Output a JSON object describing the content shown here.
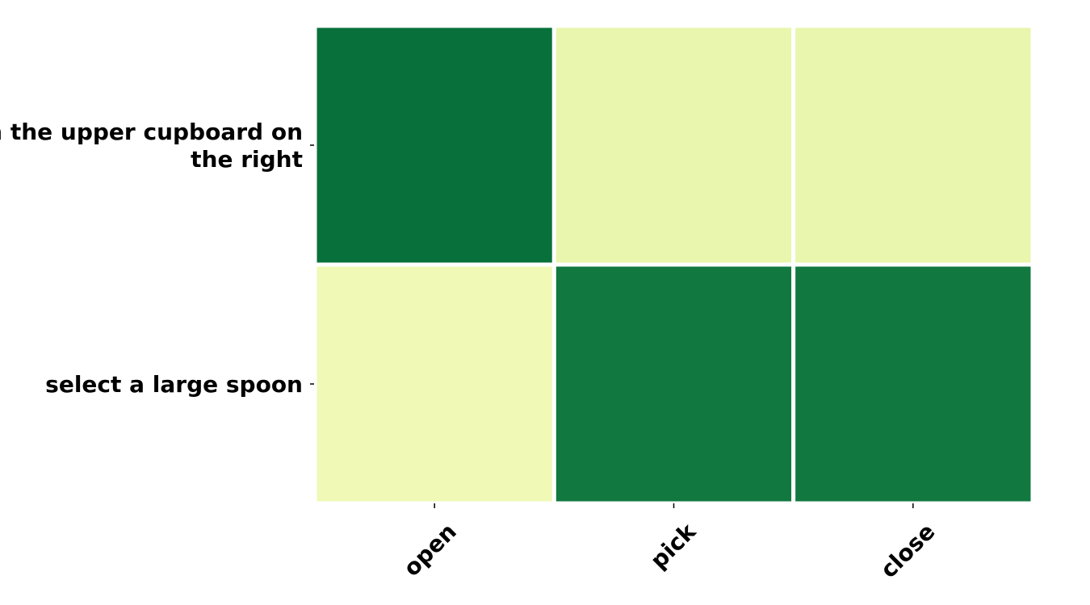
{
  "chart_data": {
    "type": "heatmap",
    "title": "",
    "xlabel": "",
    "ylabel": "",
    "x_categories": [
      "open",
      "pick",
      "close"
    ],
    "y_categories": [
      "open the upper cupboard on the right",
      "select a large spoon"
    ],
    "y_label_lines": [
      [
        "open the upper cupboard on",
        "the right"
      ],
      [
        "select a large spoon"
      ]
    ],
    "values": [
      [
        0.96,
        0.12,
        0.12
      ],
      [
        0.04,
        0.88,
        0.88
      ]
    ],
    "colorscale": "YlGn",
    "colorbar": false,
    "cell_colors": [
      [
        "#08703b",
        "#e8f6ae",
        "#e8f6ae"
      ],
      [
        "#f0f9b5",
        "#117840",
        "#117840"
      ]
    ]
  }
}
